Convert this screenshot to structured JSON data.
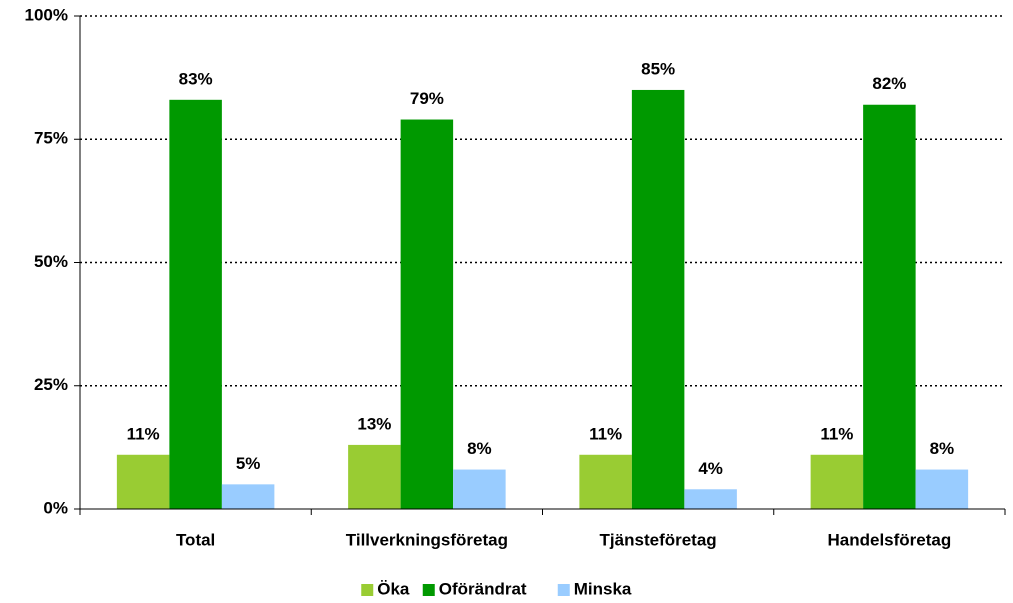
{
  "chart_data": {
    "type": "bar",
    "categories": [
      "Total",
      "Tillverkningsföretag",
      "Tjänsteföretag",
      "Handelsföretag"
    ],
    "series": [
      {
        "name": "Öka",
        "color": "#99cc33",
        "values": [
          11,
          13,
          11,
          11
        ],
        "value_labels": [
          "11%",
          "13%",
          "11%",
          "11%"
        ]
      },
      {
        "name": "Oförändrat",
        "color": "#009900",
        "values": [
          83,
          79,
          85,
          82
        ],
        "value_labels": [
          "83%",
          "79%",
          "85%",
          "82%"
        ]
      },
      {
        "name": "Minska",
        "color": "#99ccff",
        "values": [
          5,
          8,
          4,
          8
        ],
        "value_labels": [
          "5%",
          "8%",
          "4%",
          "8%"
        ]
      }
    ],
    "ylim": [
      0,
      100
    ],
    "yticks": [
      {
        "value": 0,
        "label": "0%"
      },
      {
        "value": 25,
        "label": "25%"
      },
      {
        "value": 50,
        "label": "50%"
      },
      {
        "value": 75,
        "label": "75%"
      },
      {
        "value": 100,
        "label": "100%"
      }
    ],
    "grid": true,
    "legend": "bottom"
  }
}
